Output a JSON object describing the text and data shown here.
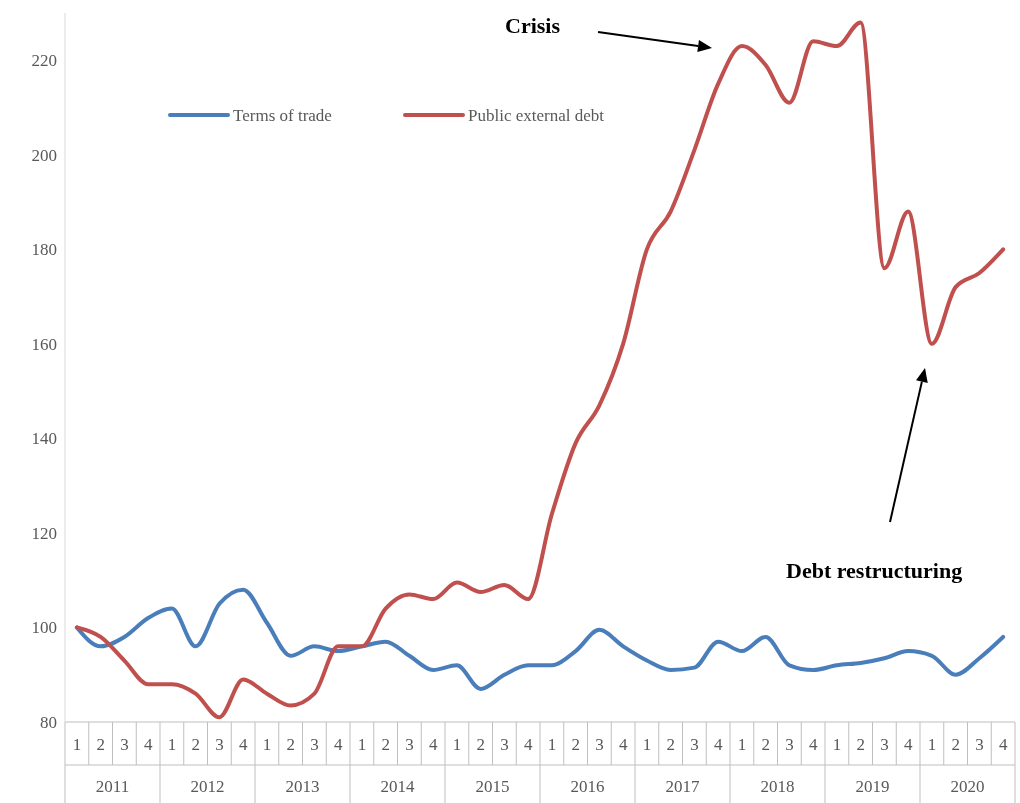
{
  "chart_data": {
    "type": "line",
    "categories": [
      "1",
      "2",
      "3",
      "4",
      "1",
      "2",
      "3",
      "4",
      "1",
      "2",
      "3",
      "4",
      "1",
      "2",
      "3",
      "4",
      "1",
      "2",
      "3",
      "4",
      "1",
      "2",
      "3",
      "4",
      "1",
      "2",
      "3",
      "4",
      "1",
      "2",
      "3",
      "4",
      "1",
      "2",
      "3",
      "4",
      "1",
      "2",
      "3",
      "4"
    ],
    "series": [
      {
        "name": "Terms of trade",
        "color": "#4a7ebb",
        "values": [
          100,
          96,
          98,
          102,
          104,
          96,
          105,
          108,
          101,
          94,
          96,
          95,
          96,
          97,
          94,
          91,
          92,
          87,
          90,
          92,
          92,
          95,
          99.5,
          96,
          93,
          91,
          91.5,
          97,
          95,
          98,
          92,
          91,
          92,
          92.5,
          93.5,
          95,
          94,
          90,
          93.5,
          98
        ]
      },
      {
        "name": "Public external debt",
        "color": "#c0504d",
        "values": [
          100,
          98,
          93,
          88,
          88,
          86,
          81,
          89,
          86,
          83.5,
          86,
          96,
          96,
          104,
          107,
          106,
          109.5,
          107.5,
          109,
          106,
          124,
          139,
          147,
          160,
          180,
          188,
          201,
          215,
          223,
          219,
          211,
          224,
          223,
          228,
          176,
          188,
          160,
          172,
          175,
          180
        ]
      }
    ],
    "ylim": [
      80,
      230
    ],
    "yticks": [
      80,
      100,
      120,
      140,
      160,
      180,
      200,
      220
    ],
    "legend": "top left",
    "grid": false,
    "annotations": [
      "Crisis",
      "Debt restructuring",
      "2011",
      "2012",
      "2013",
      "2014",
      "2015",
      "2016",
      "2017",
      "2018",
      "2019",
      "2020"
    ]
  }
}
